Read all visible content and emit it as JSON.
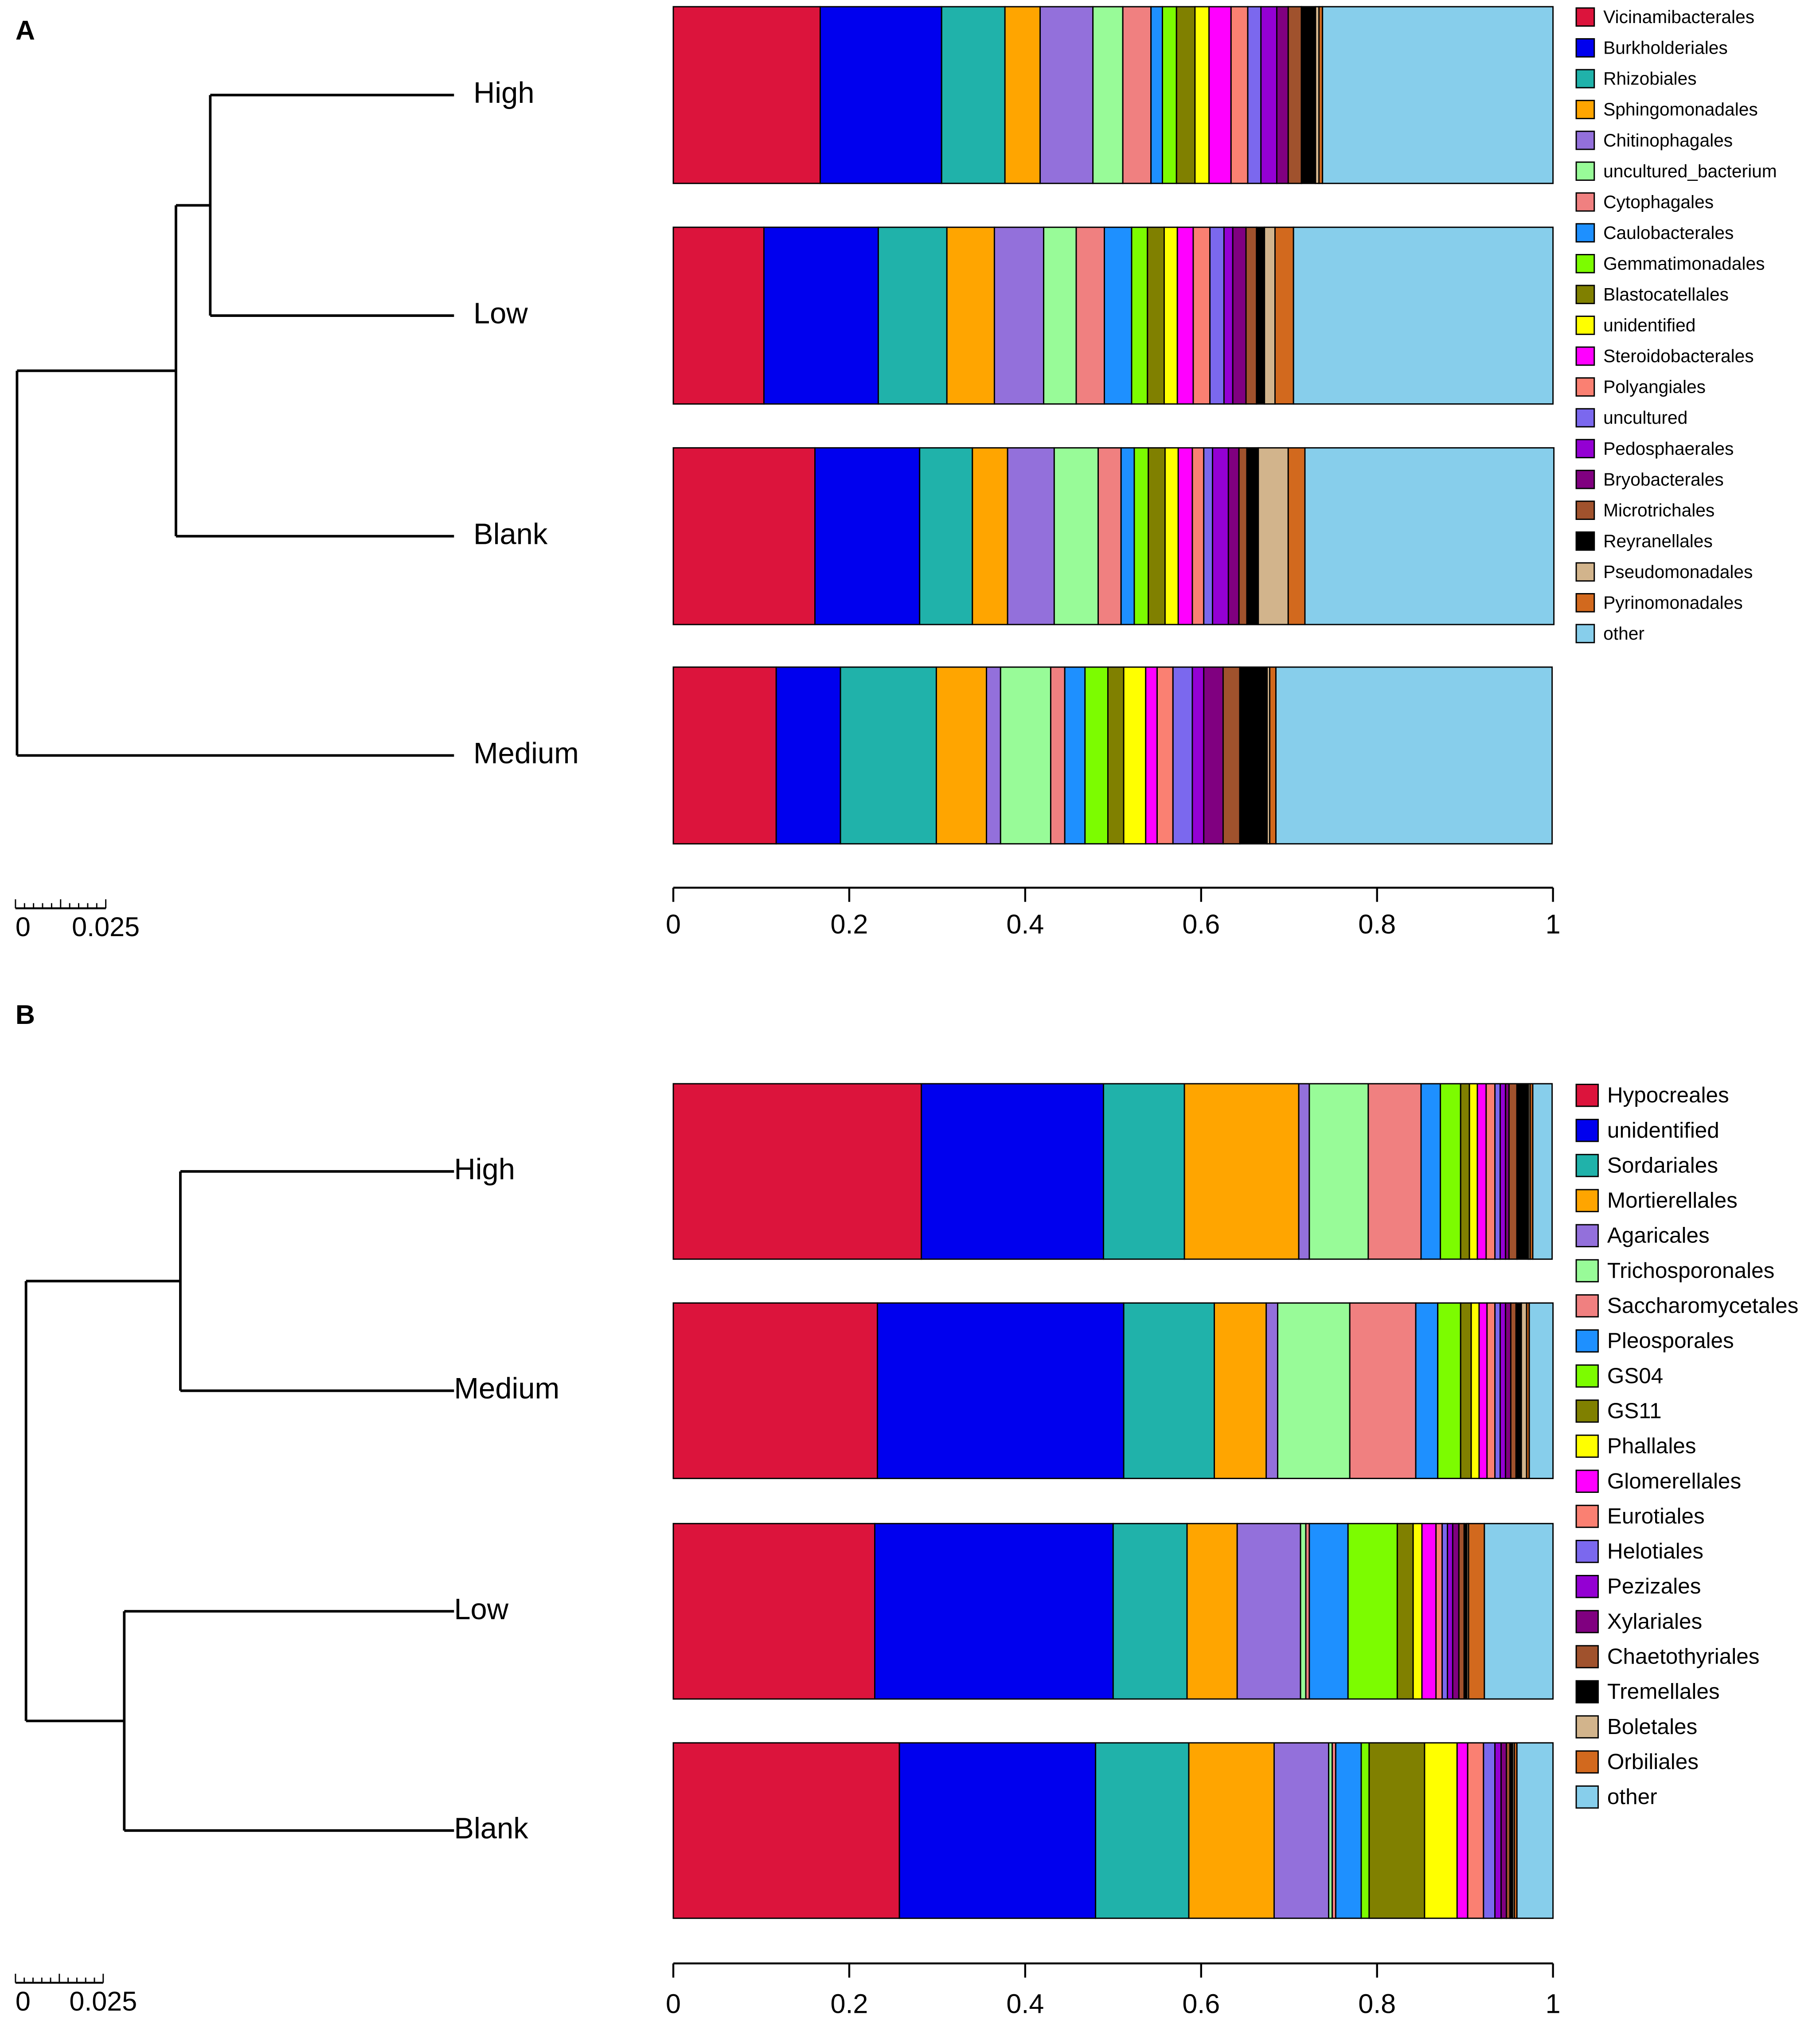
{
  "chart_data": [
    {
      "type": "bar",
      "orientation": "horizontal",
      "stacked": true,
      "label": "A",
      "categories": [
        "High",
        "Low",
        "Blank",
        "Medium"
      ],
      "xlim": [
        0,
        1
      ],
      "xticks": [
        0,
        0.2,
        0.4,
        0.6,
        0.8,
        1
      ],
      "dendrogram": {
        "height": 0.121,
        "children": [
          {
            "height": 0.077,
            "children": [
              {
                "height": 0.0675,
                "children": [
                  0,
                  1
                ]
              },
              2
            ]
          },
          3
        ]
      },
      "scale_ticks": [
        0,
        0.025
      ],
      "series": [
        {
          "name": "Vicinamibacterales",
          "color": "#dc143c",
          "values": [
            0.167,
            0.103,
            0.161,
            0.117
          ]
        },
        {
          "name": "Burkholderiales",
          "color": "#0000ee",
          "values": [
            0.138,
            0.13,
            0.119,
            0.073
          ]
        },
        {
          "name": "Rhizobiales",
          "color": "#20b2aa",
          "values": [
            0.072,
            0.078,
            0.06,
            0.109
          ]
        },
        {
          "name": "Sphingomonadales",
          "color": "#ffa500",
          "values": [
            0.04,
            0.054,
            0.04,
            0.057
          ]
        },
        {
          "name": "Chitinophagales",
          "color": "#9370db",
          "values": [
            0.06,
            0.056,
            0.053,
            0.016
          ]
        },
        {
          "name": "uncultured_bacterium",
          "color": "#98fb98",
          "values": [
            0.034,
            0.037,
            0.05,
            0.057
          ]
        },
        {
          "name": "Cytophagales",
          "color": "#f08080",
          "values": [
            0.032,
            0.032,
            0.026,
            0.016
          ]
        },
        {
          "name": "Caulobacterales",
          "color": "#1e90ff",
          "values": [
            0.013,
            0.031,
            0.015,
            0.023
          ]
        },
        {
          "name": "Gemmatimonadales",
          "color": "#7cfc00",
          "values": [
            0.016,
            0.018,
            0.016,
            0.026
          ]
        },
        {
          "name": "Blastocatellales",
          "color": "#808000",
          "values": [
            0.021,
            0.019,
            0.019,
            0.018
          ]
        },
        {
          "name": "unidentified",
          "color": "#ffff00",
          "values": [
            0.016,
            0.015,
            0.015,
            0.025
          ]
        },
        {
          "name": "Steroidobacterales",
          "color": "#ff00ff",
          "values": [
            0.025,
            0.018,
            0.016,
            0.013
          ]
        },
        {
          "name": "Polyangiales",
          "color": "#fa8072",
          "values": [
            0.019,
            0.019,
            0.013,
            0.018
          ]
        },
        {
          "name": "uncultured",
          "color": "#7b68ee",
          "values": [
            0.015,
            0.016,
            0.01,
            0.022
          ]
        },
        {
          "name": "Pedosphaerales",
          "color": "#9400d3",
          "values": [
            0.018,
            0.01,
            0.018,
            0.013
          ]
        },
        {
          "name": "Bryobacterales",
          "color": "#800080",
          "values": [
            0.013,
            0.015,
            0.012,
            0.022
          ]
        },
        {
          "name": "Microtrichales",
          "color": "#a0522d",
          "values": [
            0.015,
            0.012,
            0.009,
            0.019
          ]
        },
        {
          "name": "Reyranellales",
          "color": "#000000",
          "values": [
            0.016,
            0.009,
            0.013,
            0.031
          ]
        },
        {
          "name": "Pseudomonadales",
          "color": "#d2b48c",
          "values": [
            0.004,
            0.012,
            0.034,
            0.003
          ]
        },
        {
          "name": "Pyrinomonadales",
          "color": "#d2691e",
          "values": [
            0.004,
            0.021,
            0.019,
            0.007
          ]
        },
        {
          "name": "other",
          "color": "#87ceeb",
          "values": [
            0.262,
            0.295,
            0.283,
            0.314
          ]
        }
      ]
    },
    {
      "type": "bar",
      "orientation": "horizontal",
      "stacked": true,
      "label": "B",
      "categories": [
        "High",
        "Medium",
        "Low",
        "Blank"
      ],
      "xlim": [
        0,
        1
      ],
      "xticks": [
        0,
        0.2,
        0.4,
        0.6,
        0.8,
        1
      ],
      "dendrogram": {
        "height": 0.122,
        "children": [
          {
            "height": 0.078,
            "children": [
              0,
              1
            ]
          },
          {
            "height": 0.094,
            "children": [
              2,
              3
            ]
          }
        ]
      },
      "scale_ticks": [
        0,
        0.025
      ],
      "series": [
        {
          "name": "Hypocreales",
          "color": "#dc143c",
          "values": [
            0.282,
            0.232,
            0.229,
            0.257
          ]
        },
        {
          "name": "unidentified",
          "color": "#0000ee",
          "values": [
            0.207,
            0.28,
            0.271,
            0.223
          ]
        },
        {
          "name": "Sordariales",
          "color": "#20b2aa",
          "values": [
            0.092,
            0.103,
            0.084,
            0.106
          ]
        },
        {
          "name": "Mortierellales",
          "color": "#ffa500",
          "values": [
            0.13,
            0.059,
            0.057,
            0.097
          ]
        },
        {
          "name": "Agaricales",
          "color": "#9370db",
          "values": [
            0.012,
            0.013,
            0.072,
            0.062
          ]
        },
        {
          "name": "Trichosporonales",
          "color": "#98fb98",
          "values": [
            0.067,
            0.082,
            0.006,
            0.004
          ]
        },
        {
          "name": "Saccharomycetales",
          "color": "#f08080",
          "values": [
            0.06,
            0.075,
            0.004,
            0.004
          ]
        },
        {
          "name": "Pleosporales",
          "color": "#1e90ff",
          "values": [
            0.022,
            0.025,
            0.044,
            0.029
          ]
        },
        {
          "name": "GS04",
          "color": "#7cfc00",
          "values": [
            0.023,
            0.026,
            0.056,
            0.009
          ]
        },
        {
          "name": "GS11",
          "color": "#808000",
          "values": [
            0.01,
            0.012,
            0.018,
            0.063
          ]
        },
        {
          "name": "Phallales",
          "color": "#ffff00",
          "values": [
            0.009,
            0.009,
            0.01,
            0.037
          ]
        },
        {
          "name": "Glomerellales",
          "color": "#ff00ff",
          "values": [
            0.01,
            0.009,
            0.016,
            0.012
          ]
        },
        {
          "name": "Eurotiales",
          "color": "#fa8072",
          "values": [
            0.01,
            0.009,
            0.007,
            0.018
          ]
        },
        {
          "name": "Helotiales",
          "color": "#7b68ee",
          "values": [
            0.006,
            0.006,
            0.006,
            0.013
          ]
        },
        {
          "name": "Pezizales",
          "color": "#9400d3",
          "values": [
            0.006,
            0.006,
            0.006,
            0.007
          ]
        },
        {
          "name": "Xylariales",
          "color": "#800080",
          "values": [
            0.004,
            0.006,
            0.007,
            0.006
          ]
        },
        {
          "name": "Chaetothyriales",
          "color": "#a0522d",
          "values": [
            0.009,
            0.006,
            0.006,
            0.004
          ]
        },
        {
          "name": "Tremellales",
          "color": "#000000",
          "values": [
            0.013,
            0.006,
            0.003,
            0.003
          ]
        },
        {
          "name": "Boletales",
          "color": "#d2b48c",
          "values": [
            0.002,
            0.006,
            0.002,
            0.002
          ]
        },
        {
          "name": "Orbiliales",
          "color": "#d2691e",
          "values": [
            0.003,
            0.003,
            0.018,
            0.003
          ]
        },
        {
          "name": "other",
          "color": "#87ceeb",
          "values": [
            0.022,
            0.027,
            0.078,
            0.041
          ]
        }
      ]
    }
  ]
}
